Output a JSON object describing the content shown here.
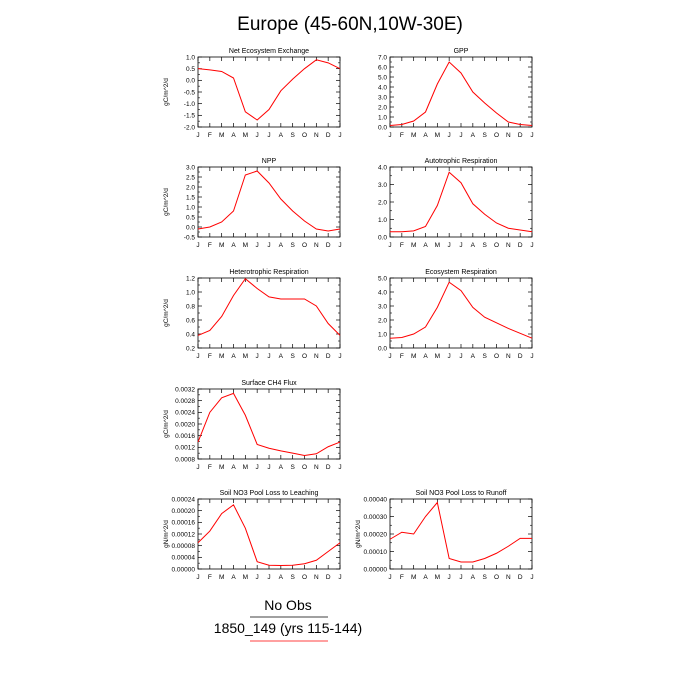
{
  "title": "Europe (45-60N,10W-30E)",
  "months": [
    "J",
    "F",
    "M",
    "A",
    "M",
    "J",
    "J",
    "A",
    "S",
    "O",
    "N",
    "D",
    "J"
  ],
  "legend": {
    "line1": "No Obs",
    "line2": "1850_149 (yrs 115-144)",
    "line2_color": "#ff0000"
  },
  "line_color": "#ff0000",
  "chart_data": [
    {
      "type": "line",
      "title": "Net Ecosystem Exchange",
      "ylabel": "gC/m^2/d",
      "ylim": [
        -2.0,
        1.0
      ],
      "yticks": [
        "-2.0",
        "-1.5",
        "-1.0",
        "-0.5",
        "0.0",
        "0.5",
        "1.0"
      ],
      "ytick_values": [
        -2.0,
        -1.5,
        -1.0,
        -0.5,
        0.0,
        0.5,
        1.0
      ],
      "values": [
        0.5,
        0.45,
        0.38,
        0.1,
        -1.35,
        -1.7,
        -1.25,
        -0.45,
        0.05,
        0.5,
        0.88,
        0.75,
        0.5
      ]
    },
    {
      "type": "line",
      "title": "GPP",
      "ylabel": "",
      "ylim": [
        0.0,
        7.0
      ],
      "yticks": [
        "0.0",
        "1.0",
        "2.0",
        "3.0",
        "4.0",
        "5.0",
        "6.0",
        "7.0"
      ],
      "ytick_values": [
        0,
        1,
        2,
        3,
        4,
        5,
        6,
        7
      ],
      "values": [
        0.15,
        0.25,
        0.6,
        1.5,
        4.3,
        6.5,
        5.4,
        3.5,
        2.4,
        1.4,
        0.5,
        0.25,
        0.15
      ]
    },
    {
      "type": "line",
      "title": "NPP",
      "ylabel": "gC/m^2/d",
      "ylim": [
        -0.5,
        3.0
      ],
      "yticks": [
        "-0.5",
        "0.0",
        "0.5",
        "1.0",
        "1.5",
        "2.0",
        "2.5",
        "3.0"
      ],
      "ytick_values": [
        -0.5,
        0.0,
        0.5,
        1.0,
        1.5,
        2.0,
        2.5,
        3.0
      ],
      "values": [
        -0.1,
        0.0,
        0.25,
        0.8,
        2.6,
        2.8,
        2.2,
        1.4,
        0.8,
        0.3,
        -0.1,
        -0.2,
        -0.1
      ]
    },
    {
      "type": "line",
      "title": "Autotrophic Respiration",
      "ylabel": "",
      "ylim": [
        0.0,
        4.0
      ],
      "yticks": [
        "0.0",
        "1.0",
        "2.0",
        "3.0",
        "4.0"
      ],
      "ytick_values": [
        0,
        1,
        2,
        3,
        4
      ],
      "values": [
        0.3,
        0.3,
        0.35,
        0.6,
        1.8,
        3.7,
        3.1,
        1.9,
        1.3,
        0.8,
        0.5,
        0.4,
        0.3
      ]
    },
    {
      "type": "line",
      "title": "Heterotrophic Respiration",
      "ylabel": "gC/m^2/d",
      "ylim": [
        0.2,
        1.2
      ],
      "yticks": [
        "0.2",
        "0.4",
        "0.6",
        "0.8",
        "1.0",
        "1.2"
      ],
      "ytick_values": [
        0.2,
        0.4,
        0.6,
        0.8,
        1.0,
        1.2
      ],
      "values": [
        0.38,
        0.45,
        0.65,
        0.95,
        1.19,
        1.05,
        0.93,
        0.9,
        0.9,
        0.9,
        0.8,
        0.55,
        0.38
      ]
    },
    {
      "type": "line",
      "title": "Ecosystem Respiration",
      "ylabel": "",
      "ylim": [
        0.0,
        5.0
      ],
      "yticks": [
        "0.0",
        "1.0",
        "2.0",
        "3.0",
        "4.0",
        "5.0"
      ],
      "ytick_values": [
        0,
        1,
        2,
        3,
        4,
        5
      ],
      "values": [
        0.7,
        0.75,
        1.0,
        1.5,
        2.9,
        4.7,
        4.1,
        2.9,
        2.2,
        1.8,
        1.4,
        1.05,
        0.7
      ]
    },
    {
      "type": "line",
      "title": "Surface CH4 Flux",
      "ylabel": "gC/m^2/d",
      "ylim": [
        0.0008,
        0.0032
      ],
      "yticks": [
        "0.0008",
        "0.0012",
        "0.0016",
        "0.0020",
        "0.0024",
        "0.0028",
        "0.0032"
      ],
      "ytick_values": [
        0.0008,
        0.0012,
        0.0016,
        0.002,
        0.0024,
        0.0028,
        0.0032
      ],
      "values": [
        0.00138,
        0.0024,
        0.0029,
        0.00305,
        0.0023,
        0.0013,
        0.00117,
        0.00108,
        0.001,
        0.00092,
        0.00098,
        0.00122,
        0.00138
      ]
    },
    {
      "type": "line",
      "title": "Soil NO3 Pool Loss to Leaching",
      "ylabel": "gN/m^2/d",
      "ylim": [
        0.0,
        0.00024
      ],
      "yticks": [
        "0.00000",
        "0.00004",
        "0.00008",
        "0.00012",
        "0.00016",
        "0.00020",
        "0.00024"
      ],
      "ytick_values": [
        0,
        4e-05,
        8e-05,
        0.00012,
        0.00016,
        0.0002,
        0.00024
      ],
      "values": [
        9e-05,
        0.00013,
        0.00019,
        0.00022,
        0.00014,
        2.5e-05,
        1.3e-05,
        1.2e-05,
        1.3e-05,
        1.8e-05,
        3e-05,
        6e-05,
        9e-05
      ]
    },
    {
      "type": "line",
      "title": "Soil NO3 Pool Loss to Runoff",
      "ylabel": "gN/m^2/d",
      "ylim": [
        0.0,
        0.0004
      ],
      "yticks": [
        "0.00000",
        "0.00010",
        "0.00020",
        "0.00030",
        "0.00040"
      ],
      "ytick_values": [
        0,
        0.0001,
        0.0002,
        0.0003,
        0.0004
      ],
      "values": [
        0.00017,
        0.00021,
        0.0002,
        0.0003,
        0.00038,
        6e-05,
        4e-05,
        4e-05,
        6e-05,
        9e-05,
        0.00013,
        0.000175,
        0.000175
      ]
    }
  ]
}
